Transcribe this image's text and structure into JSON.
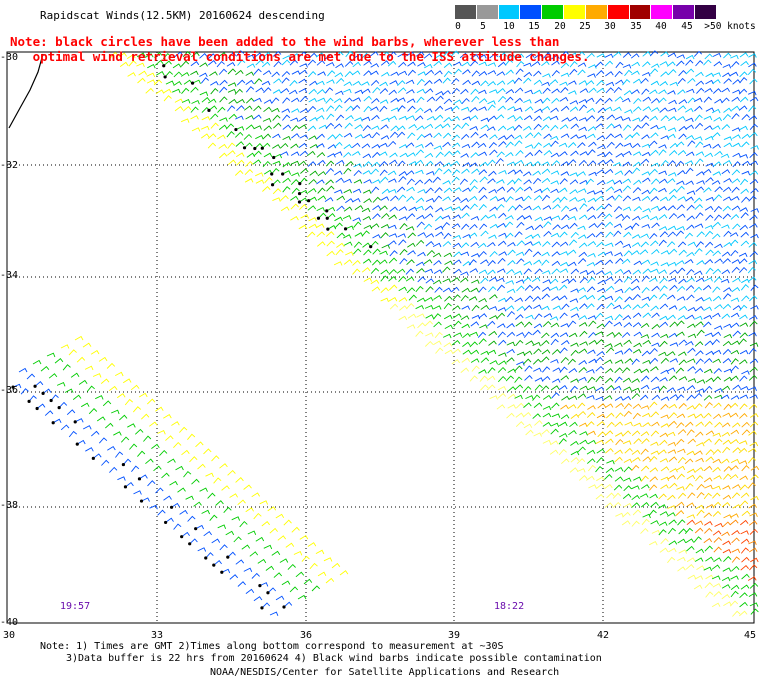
{
  "title": "Rapidscat Winds(12.5KM) 20160624 descending",
  "note": {
    "line1": "Note: black circles have been added to the wind barbs, wherever less than",
    "line2": "   optimal wind retrieval conditions are met due to the ISS attitude changes."
  },
  "legend": {
    "labels": [
      "0",
      "5",
      "10",
      "15",
      "20",
      "25",
      "30",
      "35",
      "40",
      "45",
      ">50 knots"
    ],
    "colors": [
      "#555555",
      "#999999",
      "#00c8ff",
      "#0050ff",
      "#00cc00",
      "#ffff00",
      "#ffaa00",
      "#ff0000",
      "#a00000",
      "#ff00ff",
      "#7700aa",
      "#330044"
    ]
  },
  "lat_labels": [
    "-30",
    "-32",
    "-34",
    "-36",
    "-38",
    "-40"
  ],
  "lon_labels": [
    "30",
    "33",
    "36",
    "39",
    "42",
    "45"
  ],
  "times": [
    "19:57",
    "18:22"
  ],
  "footer": {
    "line1": "Note: 1) Times are GMT 2)Times along bottom correspond to measurement at ~30S",
    "line2": "3)Data buffer is 22 hrs from 20160624 4) Black wind barbs indicate possible contamination",
    "line3": "NOAA/NESDIS/Center for Satellite Applications and Research"
  }
}
